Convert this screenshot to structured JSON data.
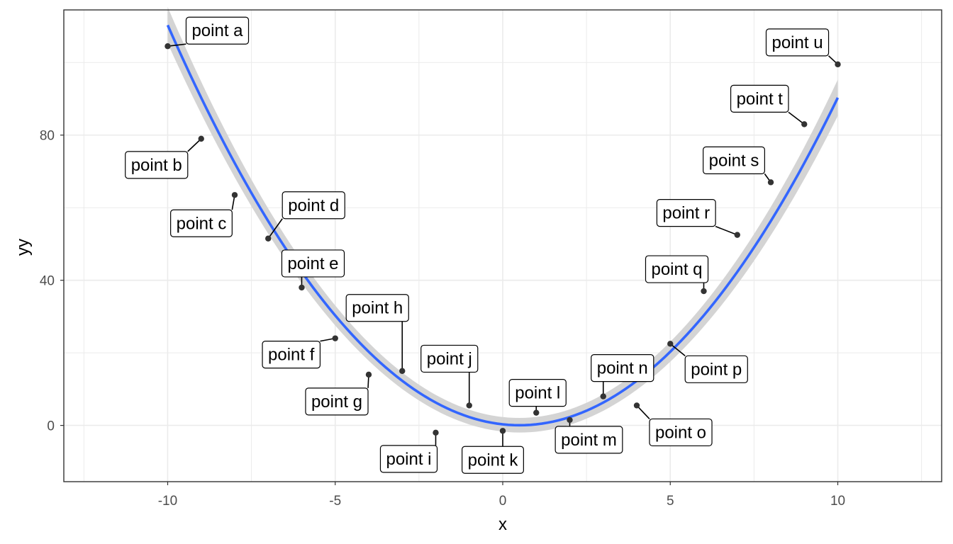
{
  "chart_data": {
    "type": "scatter",
    "title": "",
    "xlabel": "x",
    "ylabel": "yy",
    "xlim": [
      -13.1,
      13.1
    ],
    "ylim": [
      -15.5,
      114.5
    ],
    "x_ticks": [
      -10,
      -5,
      0,
      5,
      10
    ],
    "x_tick_labels": [
      "-10",
      "-5",
      "0",
      "5",
      "10"
    ],
    "y_ticks": [
      0,
      40,
      80
    ],
    "y_tick_labels": [
      "0",
      "40",
      "80"
    ],
    "grid": true,
    "legend": "none",
    "colors": {
      "points": "#333333",
      "smooth_line": "#3366FF",
      "confidence_band": "#d4d4d4",
      "grid": "#ebebeb",
      "panel_border": "#333333"
    },
    "points": [
      {
        "x": -10,
        "y": 104.5,
        "label": "point a"
      },
      {
        "x": -9,
        "y": 79,
        "label": "point b"
      },
      {
        "x": -8,
        "y": 63.5,
        "label": "point c"
      },
      {
        "x": -7,
        "y": 51.5,
        "label": "point d"
      },
      {
        "x": -6,
        "y": 38,
        "label": "point e"
      },
      {
        "x": -5,
        "y": 24,
        "label": "point f"
      },
      {
        "x": -4,
        "y": 14,
        "label": "point g"
      },
      {
        "x": -3,
        "y": 15,
        "label": "point h"
      },
      {
        "x": -2,
        "y": -2,
        "label": "point i"
      },
      {
        "x": -1,
        "y": 5.5,
        "label": "point j"
      },
      {
        "x": 0,
        "y": -1.5,
        "label": "point k"
      },
      {
        "x": 1,
        "y": 3.5,
        "label": "point l"
      },
      {
        "x": 2,
        "y": 1.5,
        "label": "point m"
      },
      {
        "x": 3,
        "y": 8,
        "label": "point n"
      },
      {
        "x": 4,
        "y": 5.5,
        "label": "point o"
      },
      {
        "x": 5,
        "y": 22.5,
        "label": "point p"
      },
      {
        "x": 6,
        "y": 37,
        "label": "point q"
      },
      {
        "x": 7,
        "y": 52.5,
        "label": "point r"
      },
      {
        "x": 8,
        "y": 67,
        "label": "point s"
      },
      {
        "x": 9,
        "y": 83,
        "label": "point t"
      },
      {
        "x": 10,
        "y": 99.5,
        "label": "point u"
      }
    ],
    "smooth": {
      "method": "quadratic fit",
      "coefficients": {
        "a": 1.0,
        "b": -1.0,
        "c": 0.3
      },
      "band_halfwidth_ends": 5,
      "band_halfwidth_center": 2
    }
  }
}
